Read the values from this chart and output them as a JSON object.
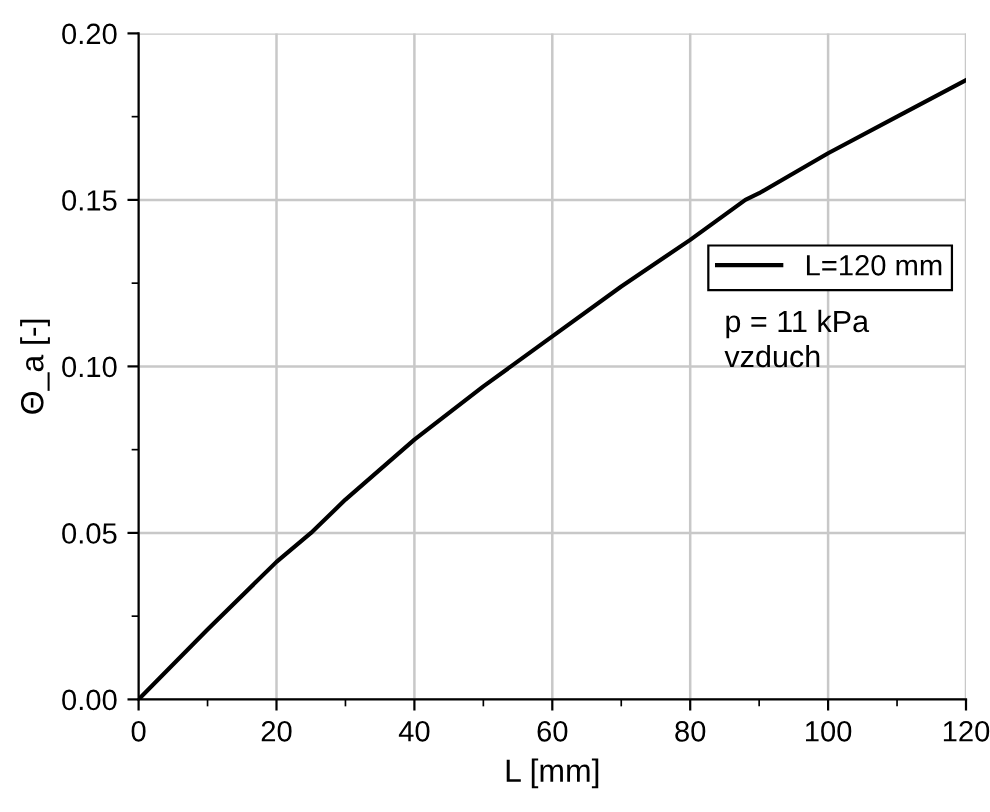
{
  "chart_data": {
    "type": "line",
    "xlabel": "L [mm]",
    "ylabel": "Θ_a [-]",
    "x": [
      0,
      10,
      20,
      25,
      30,
      40,
      50,
      60,
      70,
      80,
      88,
      90,
      100,
      110,
      120
    ],
    "series": [
      {
        "name": "L=120 mm",
        "color": "#000000",
        "values": [
          0,
          0.021,
          0.0413,
          0.05,
          0.06,
          0.078,
          0.094,
          0.109,
          0.124,
          0.138,
          0.15,
          0.152,
          0.164,
          0.175,
          0.186
        ]
      }
    ],
    "xlim": [
      0,
      120
    ],
    "xticks": [
      0,
      20,
      40,
      60,
      80,
      100,
      120
    ],
    "ylim": [
      0,
      0.2
    ],
    "yticks": [
      {
        "value": 0,
        "label": "0.00"
      },
      {
        "value": 0.05,
        "label": "0.05"
      },
      {
        "value": 0.1,
        "label": "0.10"
      },
      {
        "value": 0.15,
        "label": "0.15"
      },
      {
        "value": 0.2,
        "label": "0.20"
      }
    ],
    "grid": true,
    "legend": "right",
    "line_style": "solid",
    "marker": "none",
    "annotations": [
      "p = 11 kPa\nvzduch"
    ]
  }
}
